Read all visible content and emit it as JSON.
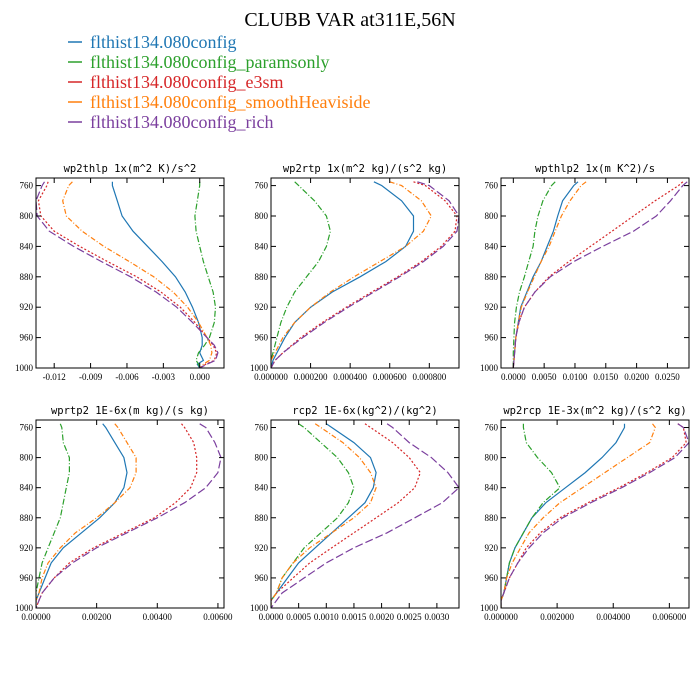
{
  "title": "CLUBB VAR at311E,56N",
  "legend": [
    {
      "label": "flthist134.080config",
      "color": "#1f77b4",
      "dash": ""
    },
    {
      "label": "flthist134.080config_paramsonly",
      "color": "#2ca02c",
      "dash": "6,2,1,2"
    },
    {
      "label": "flthist134.080config_e3sm",
      "color": "#d62728",
      "dash": "2,2"
    },
    {
      "label": "flthist134.080config_smoothHeaviside",
      "color": "#ff7f0e",
      "dash": "5,2,1,2"
    },
    {
      "label": "flthist134.080config_rich",
      "color": "#7b3f9e",
      "dash": "8,3"
    }
  ],
  "chart_data": [
    {
      "type": "line",
      "title": "wp2thlp  1x(m^2 K)/s^2",
      "y_ticks": [
        760,
        800,
        840,
        880,
        920,
        960,
        1000
      ],
      "ylim": [
        1000,
        750
      ],
      "xlim": [
        -0.0135,
        0.002
      ],
      "x_ticks": [
        -0.012,
        -0.009,
        -0.006,
        -0.003,
        0.0
      ],
      "x_tick_labels": [
        "-0.012",
        "-0.009",
        "-0.006",
        "-0.003",
        "0.000"
      ],
      "y": [
        755,
        760,
        780,
        800,
        820,
        840,
        860,
        880,
        900,
        920,
        940,
        960,
        970,
        980,
        990,
        995,
        1000
      ],
      "series": [
        {
          "values": [
            -0.0072,
            -0.0072,
            -0.0068,
            -0.0064,
            -0.0055,
            -0.0043,
            -0.0031,
            -0.002,
            -0.0012,
            -0.0006,
            -0.0001,
            0.0002,
            0.0002,
            0.0,
            0.0003,
            -0.0002,
            0.0
          ]
        },
        {
          "values": [
            0.0,
            0.0,
            -0.0002,
            -0.0004,
            -0.0003,
            0.0,
            0.0003,
            0.0007,
            0.0011,
            0.0013,
            0.0012,
            0.0008,
            0.0004,
            -0.0001,
            -0.0003,
            -0.0001,
            0.0
          ]
        },
        {
          "values": [
            -0.0125,
            -0.0126,
            -0.0133,
            -0.0131,
            -0.012,
            -0.0099,
            -0.0076,
            -0.0052,
            -0.0032,
            -0.0016,
            -0.0004,
            0.0006,
            0.0011,
            0.0014,
            0.0012,
            0.0005,
            0.0
          ]
        },
        {
          "values": [
            -0.0105,
            -0.0108,
            -0.0113,
            -0.011,
            -0.0097,
            -0.0079,
            -0.0058,
            -0.0038,
            -0.0022,
            -0.001,
            -0.0001,
            0.0006,
            0.0009,
            0.001,
            0.0008,
            0.0003,
            0.0
          ]
        },
        {
          "values": [
            -0.0128,
            -0.013,
            -0.0135,
            -0.0134,
            -0.0124,
            -0.0104,
            -0.0081,
            -0.0057,
            -0.0036,
            -0.0019,
            -0.0006,
            0.0006,
            0.0012,
            0.0015,
            0.0013,
            0.0006,
            0.0
          ]
        }
      ]
    },
    {
      "type": "line",
      "title": "wp2rtp  1x(m^2 kg)/(s^2 kg)",
      "y_ticks": [
        760,
        800,
        840,
        880,
        920,
        960,
        1000
      ],
      "ylim": [
        1000,
        750
      ],
      "xlim": [
        0.0,
        0.00095
      ],
      "x_ticks": [
        0.0,
        0.0002,
        0.0004,
        0.0006,
        0.0008
      ],
      "x_tick_labels": [
        "0.000000",
        "0.000200",
        "0.000400",
        "0.000600",
        "0.000800"
      ],
      "y": [
        755,
        760,
        780,
        800,
        820,
        840,
        860,
        880,
        900,
        920,
        940,
        960,
        980,
        990,
        1000
      ],
      "series": [
        {
          "values": [
            0.00052,
            0.00056,
            0.00066,
            0.00072,
            0.00072,
            0.00068,
            0.00058,
            0.00045,
            0.00031,
            0.0002,
            0.00012,
            7e-05,
            3e-05,
            1e-05,
            0.0
          ]
        },
        {
          "values": [
            0.00012,
            0.00014,
            0.00022,
            0.00028,
            0.0003,
            0.00028,
            0.00024,
            0.00018,
            0.00012,
            8e-05,
            5e-05,
            3e-05,
            1e-05,
            0.0,
            0.0
          ]
        },
        {
          "values": [
            0.00072,
            0.00078,
            0.00088,
            0.00094,
            0.00093,
            0.00086,
            0.00076,
            0.00064,
            0.00051,
            0.00038,
            0.00026,
            0.00015,
            6e-05,
            2e-05,
            0.0
          ]
        },
        {
          "values": [
            0.0006,
            0.00066,
            0.00076,
            0.00081,
            0.00077,
            0.00068,
            0.00055,
            0.00042,
            0.0003,
            0.0002,
            0.00012,
            6e-05,
            2e-05,
            0.0,
            0.0
          ]
        },
        {
          "values": [
            0.00074,
            0.0008,
            0.0009,
            0.00095,
            0.00094,
            0.00087,
            0.00077,
            0.00065,
            0.00052,
            0.00039,
            0.00027,
            0.00016,
            6e-05,
            2e-05,
            0.0
          ]
        }
      ]
    },
    {
      "type": "line",
      "title": "wpthlp2  1x(m K^2)/s",
      "y_ticks": [
        760,
        800,
        840,
        880,
        920,
        960,
        1000
      ],
      "ylim": [
        1000,
        750
      ],
      "xlim": [
        -0.002,
        0.0285
      ],
      "x_ticks": [
        0.0,
        0.005,
        0.01,
        0.015,
        0.02,
        0.025
      ],
      "x_tick_labels": [
        "0.0000",
        "0.0050",
        "0.0100",
        "0.0150",
        "0.0200",
        "0.0250"
      ],
      "y": [
        755,
        760,
        780,
        800,
        820,
        840,
        860,
        880,
        900,
        920,
        940,
        960,
        980,
        1000
      ],
      "series": [
        {
          "values": [
            0.0105,
            0.0098,
            0.008,
            0.0072,
            0.0065,
            0.0055,
            0.0045,
            0.0032,
            0.0022,
            0.0012,
            0.0008,
            0.0004,
            0.0002,
            0.0
          ]
        },
        {
          "values": [
            0.0068,
            0.0062,
            0.0048,
            0.004,
            0.0035,
            0.0032,
            0.0025,
            0.0018,
            0.001,
            0.0005,
            0.0002,
            0.0001,
            0.0,
            0.0
          ]
        },
        {
          "values": [
            0.0275,
            0.0268,
            0.023,
            0.0195,
            0.016,
            0.0125,
            0.009,
            0.0058,
            0.0035,
            0.0018,
            0.0009,
            0.0004,
            0.0002,
            0.0
          ]
        },
        {
          "values": [
            0.0118,
            0.011,
            0.0092,
            0.0078,
            0.0068,
            0.0058,
            0.0045,
            0.0034,
            0.0023,
            0.0013,
            0.0008,
            0.0004,
            0.0002,
            0.0
          ]
        },
        {
          "values": [
            0.0282,
            0.0275,
            0.0255,
            0.0232,
            0.0195,
            0.0145,
            0.0098,
            0.006,
            0.0035,
            0.0018,
            0.0009,
            0.0004,
            0.0002,
            0.0
          ]
        }
      ]
    },
    {
      "type": "line",
      "title": "wprtp2  1E-6x(m kg)/(s kg)",
      "y_ticks": [
        760,
        800,
        840,
        880,
        920,
        960,
        1000
      ],
      "ylim": [
        1000,
        750
      ],
      "xlim": [
        0.0,
        0.0062
      ],
      "x_ticks": [
        0.0,
        0.002,
        0.004,
        0.006
      ],
      "x_tick_labels": [
        "0.00000",
        "0.00200",
        "0.00400",
        "0.00600"
      ],
      "y": [
        755,
        760,
        780,
        800,
        820,
        840,
        860,
        880,
        900,
        920,
        940,
        960,
        980,
        990,
        1000
      ],
      "series": [
        {
          "values": [
            0.0022,
            0.0023,
            0.0026,
            0.0029,
            0.003,
            0.0029,
            0.0026,
            0.0021,
            0.0015,
            0.0009,
            0.0005,
            0.0003,
            0.0001,
            0.0,
            0.0
          ]
        },
        {
          "values": [
            0.0008,
            0.00085,
            0.0009,
            0.0011,
            0.0011,
            0.001,
            0.0009,
            0.0008,
            0.0006,
            0.0004,
            0.0002,
            0.0001,
            0.0,
            0.0,
            0.0
          ]
        },
        {
          "values": [
            0.0048,
            0.0049,
            0.0052,
            0.0053,
            0.0053,
            0.0051,
            0.0046,
            0.0039,
            0.0029,
            0.0019,
            0.0011,
            0.0006,
            0.0002,
            0.0001,
            0.0
          ]
        },
        {
          "values": [
            0.0026,
            0.0027,
            0.003,
            0.0033,
            0.0033,
            0.0031,
            0.0026,
            0.002,
            0.0013,
            0.0008,
            0.0004,
            0.0002,
            0.0001,
            0.0,
            0.0
          ]
        },
        {
          "values": [
            0.0054,
            0.0056,
            0.0059,
            0.0061,
            0.006,
            0.0056,
            0.0049,
            0.004,
            0.003,
            0.002,
            0.0012,
            0.0006,
            0.0002,
            0.0001,
            0.0
          ]
        }
      ]
    },
    {
      "type": "line",
      "title": "rcp2  1E-6x(kg^2)/(kg^2)",
      "y_ticks": [
        760,
        800,
        840,
        880,
        920,
        960,
        1000
      ],
      "ylim": [
        1000,
        750
      ],
      "xlim": [
        0.0,
        0.0034
      ],
      "x_ticks": [
        0.0,
        0.0005,
        0.001,
        0.0015,
        0.002,
        0.0025,
        0.003
      ],
      "x_tick_labels": [
        "0.0000",
        "0.0005",
        "0.0010",
        "0.0015",
        "0.0020",
        "0.0025",
        "0.0030"
      ],
      "y": [
        755,
        760,
        780,
        800,
        820,
        840,
        860,
        880,
        900,
        920,
        940,
        960,
        980,
        990,
        1000
      ],
      "series": [
        {
          "values": [
            0.001,
            0.0011,
            0.0015,
            0.0018,
            0.0019,
            0.00185,
            0.0017,
            0.0014,
            0.0011,
            0.0008,
            0.0005,
            0.0003,
            0.0001,
            0.0,
            0.0
          ]
        },
        {
          "values": [
            0.0005,
            0.0006,
            0.0009,
            0.0012,
            0.0014,
            0.0015,
            0.0014,
            0.0012,
            0.0009,
            0.0006,
            0.0004,
            0.0002,
            0.0001,
            0.0,
            0.0
          ]
        },
        {
          "values": [
            0.0017,
            0.0018,
            0.0022,
            0.0025,
            0.0027,
            0.0026,
            0.0023,
            0.0019,
            0.0015,
            0.0011,
            0.0007,
            0.0004,
            0.0001,
            0.0,
            0.0
          ]
        },
        {
          "values": [
            0.0008,
            0.0009,
            0.0013,
            0.0016,
            0.0018,
            0.0019,
            0.0018,
            0.0015,
            0.0011,
            0.0007,
            0.0004,
            0.0002,
            0.0001,
            0.0,
            0.0
          ]
        },
        {
          "values": [
            0.0021,
            0.0022,
            0.0025,
            0.0029,
            0.0032,
            0.0034,
            0.0031,
            0.0026,
            0.0021,
            0.0015,
            0.001,
            0.0006,
            0.0002,
            0.0001,
            0.0
          ]
        }
      ]
    },
    {
      "type": "line",
      "title": "wp2rcp  1E-3x(m^2 kg)/(s^2 kg)",
      "y_ticks": [
        760,
        800,
        840,
        880,
        920,
        960,
        1000
      ],
      "ylim": [
        1000,
        750
      ],
      "xlim": [
        0.0,
        0.0067
      ],
      "x_ticks": [
        0.0,
        0.002,
        0.004,
        0.006
      ],
      "x_tick_labels": [
        "0.000000",
        "0.002000",
        "0.004000",
        "0.006000"
      ],
      "y": [
        755,
        760,
        780,
        800,
        820,
        840,
        860,
        880,
        900,
        920,
        940,
        960,
        980,
        990,
        1000
      ],
      "series": [
        {
          "values": [
            0.0044,
            0.0044,
            0.0041,
            0.0036,
            0.003,
            0.0023,
            0.0016,
            0.0011,
            0.0008,
            0.0005,
            0.0003,
            0.0002,
            0.0001,
            0.0,
            0.0
          ]
        },
        {
          "values": [
            0.0008,
            0.0008,
            0.0009,
            0.0013,
            0.0018,
            0.0021,
            0.0015,
            0.0011,
            0.0008,
            0.0005,
            0.0003,
            0.0002,
            0.0001,
            0.0,
            0.0
          ]
        },
        {
          "values": [
            0.0063,
            0.0065,
            0.0066,
            0.0061,
            0.0052,
            0.0042,
            0.0031,
            0.0021,
            0.0014,
            0.0009,
            0.0006,
            0.0003,
            0.0001,
            0.0,
            0.0
          ]
        },
        {
          "values": [
            0.0054,
            0.0055,
            0.0053,
            0.0045,
            0.0037,
            0.0029,
            0.0021,
            0.0015,
            0.001,
            0.0007,
            0.0004,
            0.0002,
            0.0001,
            0.0,
            0.0
          ]
        },
        {
          "values": [
            0.0063,
            0.0065,
            0.0067,
            0.0062,
            0.0053,
            0.0043,
            0.0032,
            0.0022,
            0.0015,
            0.001,
            0.0006,
            0.0003,
            0.0001,
            0.0,
            0.0
          ]
        }
      ]
    }
  ]
}
